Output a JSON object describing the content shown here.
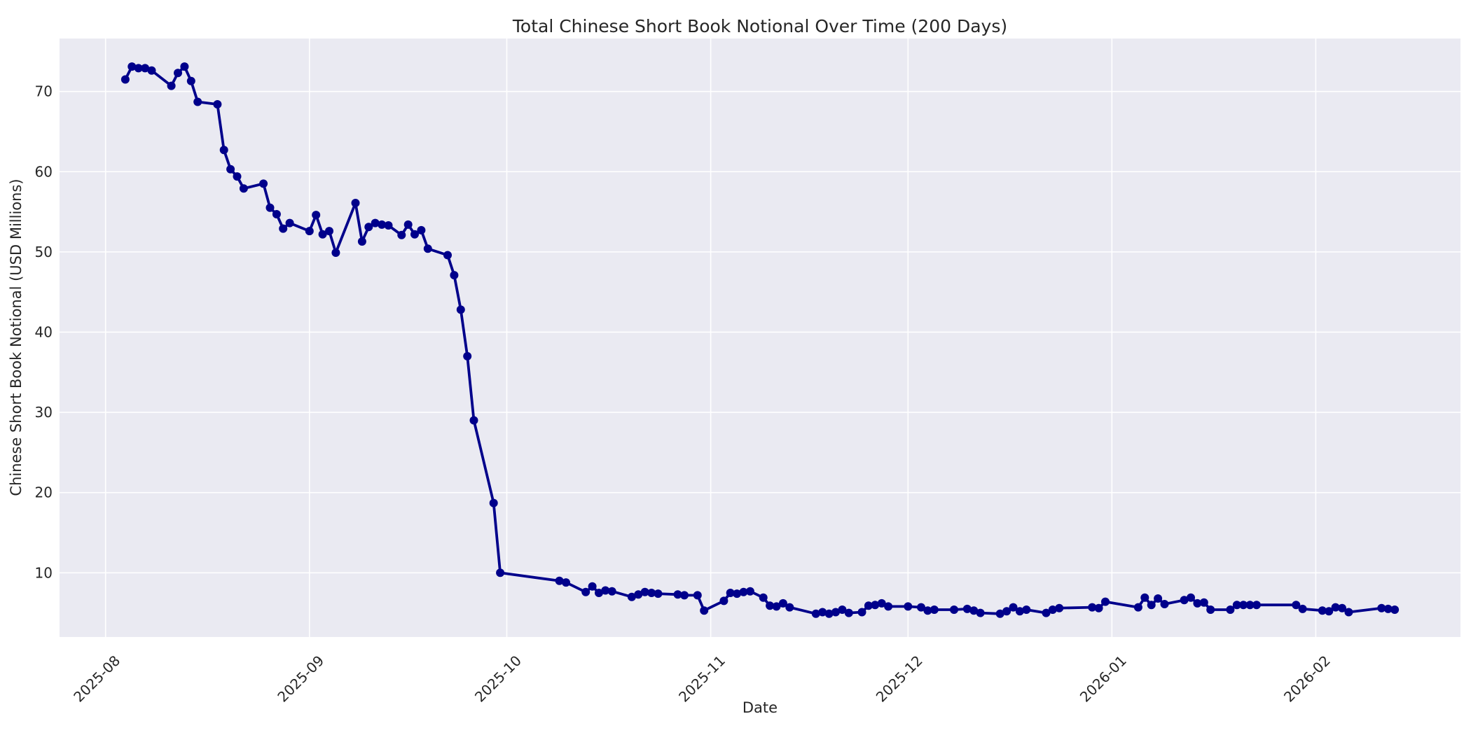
{
  "chart_data": {
    "type": "line",
    "title": "Total Chinese Short Book Notional Over Time (200 Days)",
    "xlabel": "Date",
    "ylabel": "Chinese Short Book Notional (USD Millions)",
    "legend": "none",
    "grid": true,
    "plot_bg_color": "#EAEAF2",
    "grid_color": "#FFFFFF",
    "text_color": "#262626",
    "line_color": "#00008B",
    "marker": "circle",
    "x_ticks": [
      {
        "label": "2025-08",
        "date": "2025-08-01"
      },
      {
        "label": "2025-09",
        "date": "2025-09-01"
      },
      {
        "label": "2025-10",
        "date": "2025-10-01"
      },
      {
        "label": "2025-11",
        "date": "2025-11-01"
      },
      {
        "label": "2025-12",
        "date": "2025-12-01"
      },
      {
        "label": "2026-01",
        "date": "2026-01-01"
      },
      {
        "label": "2026-02",
        "date": "2026-02-01"
      }
    ],
    "y_ticks": [
      10,
      20,
      30,
      40,
      50,
      60,
      70
    ],
    "x_range": [
      "2025-07-25",
      "2026-02-23"
    ],
    "ylim": [
      2.0,
      76.6
    ],
    "series": [
      {
        "name": "Chinese Short Book Notional (USD Millions)",
        "color": "#00008B",
        "points": [
          [
            "2025-08-04",
            71.5
          ],
          [
            "2025-08-05",
            73.1
          ],
          [
            "2025-08-06",
            72.9
          ],
          [
            "2025-08-07",
            72.9
          ],
          [
            "2025-08-08",
            72.6
          ],
          [
            "2025-08-11",
            70.7
          ],
          [
            "2025-08-12",
            72.3
          ],
          [
            "2025-08-13",
            73.1
          ],
          [
            "2025-08-14",
            71.3
          ],
          [
            "2025-08-15",
            68.7
          ],
          [
            "2025-08-18",
            68.4
          ],
          [
            "2025-08-19",
            62.7
          ],
          [
            "2025-08-20",
            60.3
          ],
          [
            "2025-08-21",
            59.4
          ],
          [
            "2025-08-22",
            57.9
          ],
          [
            "2025-08-25",
            58.5
          ],
          [
            "2025-08-26",
            55.5
          ],
          [
            "2025-08-27",
            54.7
          ],
          [
            "2025-08-28",
            52.9
          ],
          [
            "2025-08-29",
            53.6
          ],
          [
            "2025-09-01",
            52.6
          ],
          [
            "2025-09-02",
            54.6
          ],
          [
            "2025-09-03",
            52.2
          ],
          [
            "2025-09-04",
            52.6
          ],
          [
            "2025-09-05",
            49.9
          ],
          [
            "2025-09-08",
            56.1
          ],
          [
            "2025-09-09",
            51.3
          ],
          [
            "2025-09-10",
            53.1
          ],
          [
            "2025-09-11",
            53.6
          ],
          [
            "2025-09-12",
            53.4
          ],
          [
            "2025-09-13",
            53.3
          ],
          [
            "2025-09-15",
            52.1
          ],
          [
            "2025-09-16",
            53.4
          ],
          [
            "2025-09-17",
            52.2
          ],
          [
            "2025-09-18",
            52.7
          ],
          [
            "2025-09-19",
            50.4
          ],
          [
            "2025-09-22",
            49.6
          ],
          [
            "2025-09-23",
            47.1
          ],
          [
            "2025-09-24",
            42.8
          ],
          [
            "2025-09-25",
            37.0
          ],
          [
            "2025-09-26",
            29.0
          ],
          [
            "2025-09-29",
            18.7
          ],
          [
            "2025-09-30",
            10.0
          ],
          [
            "2025-10-09",
            9.0
          ],
          [
            "2025-10-10",
            8.8
          ],
          [
            "2025-10-13",
            7.6
          ],
          [
            "2025-10-14",
            8.3
          ],
          [
            "2025-10-15",
            7.5
          ],
          [
            "2025-10-16",
            7.8
          ],
          [
            "2025-10-17",
            7.7
          ],
          [
            "2025-10-20",
            7.0
          ],
          [
            "2025-10-21",
            7.3
          ],
          [
            "2025-10-22",
            7.6
          ],
          [
            "2025-10-23",
            7.5
          ],
          [
            "2025-10-24",
            7.4
          ],
          [
            "2025-10-27",
            7.3
          ],
          [
            "2025-10-28",
            7.2
          ],
          [
            "2025-10-30",
            7.2
          ],
          [
            "2025-10-31",
            5.3
          ],
          [
            "2025-11-03",
            6.5
          ],
          [
            "2025-11-04",
            7.5
          ],
          [
            "2025-11-05",
            7.4
          ],
          [
            "2025-11-06",
            7.6
          ],
          [
            "2025-11-07",
            7.7
          ],
          [
            "2025-11-09",
            6.9
          ],
          [
            "2025-11-10",
            5.9
          ],
          [
            "2025-11-11",
            5.8
          ],
          [
            "2025-11-12",
            6.2
          ],
          [
            "2025-11-13",
            5.7
          ],
          [
            "2025-11-17",
            4.9
          ],
          [
            "2025-11-18",
            5.1
          ],
          [
            "2025-11-19",
            4.9
          ],
          [
            "2025-11-20",
            5.1
          ],
          [
            "2025-11-21",
            5.4
          ],
          [
            "2025-11-22",
            5.0
          ],
          [
            "2025-11-24",
            5.1
          ],
          [
            "2025-11-25",
            5.9
          ],
          [
            "2025-11-26",
            6.0
          ],
          [
            "2025-11-27",
            6.2
          ],
          [
            "2025-11-28",
            5.8
          ],
          [
            "2025-12-01",
            5.8
          ],
          [
            "2025-12-03",
            5.7
          ],
          [
            "2025-12-04",
            5.3
          ],
          [
            "2025-12-05",
            5.4
          ],
          [
            "2025-12-08",
            5.4
          ],
          [
            "2025-12-10",
            5.5
          ],
          [
            "2025-12-11",
            5.3
          ],
          [
            "2025-12-12",
            5.0
          ],
          [
            "2025-12-15",
            4.9
          ],
          [
            "2025-12-16",
            5.2
          ],
          [
            "2025-12-17",
            5.7
          ],
          [
            "2025-12-18",
            5.2
          ],
          [
            "2025-12-19",
            5.4
          ],
          [
            "2025-12-22",
            5.0
          ],
          [
            "2025-12-23",
            5.4
          ],
          [
            "2025-12-24",
            5.6
          ],
          [
            "2025-12-29",
            5.7
          ],
          [
            "2025-12-30",
            5.6
          ],
          [
            "2025-12-31",
            6.4
          ],
          [
            "2026-01-05",
            5.7
          ],
          [
            "2026-01-06",
            6.9
          ],
          [
            "2026-01-07",
            6.0
          ],
          [
            "2026-01-08",
            6.8
          ],
          [
            "2026-01-09",
            6.1
          ],
          [
            "2026-01-12",
            6.6
          ],
          [
            "2026-01-13",
            6.9
          ],
          [
            "2026-01-14",
            6.2
          ],
          [
            "2026-01-15",
            6.3
          ],
          [
            "2026-01-16",
            5.4
          ],
          [
            "2026-01-19",
            5.4
          ],
          [
            "2026-01-20",
            6.0
          ],
          [
            "2026-01-21",
            6.0
          ],
          [
            "2026-01-22",
            6.0
          ],
          [
            "2026-01-23",
            6.0
          ],
          [
            "2026-01-29",
            6.0
          ],
          [
            "2026-01-30",
            5.5
          ],
          [
            "2026-02-02",
            5.3
          ],
          [
            "2026-02-03",
            5.2
          ],
          [
            "2026-02-04",
            5.7
          ],
          [
            "2026-02-05",
            5.6
          ],
          [
            "2026-02-06",
            5.1
          ],
          [
            "2026-02-11",
            5.6
          ],
          [
            "2026-02-12",
            5.5
          ],
          [
            "2026-02-13",
            5.4
          ]
        ]
      }
    ]
  }
}
